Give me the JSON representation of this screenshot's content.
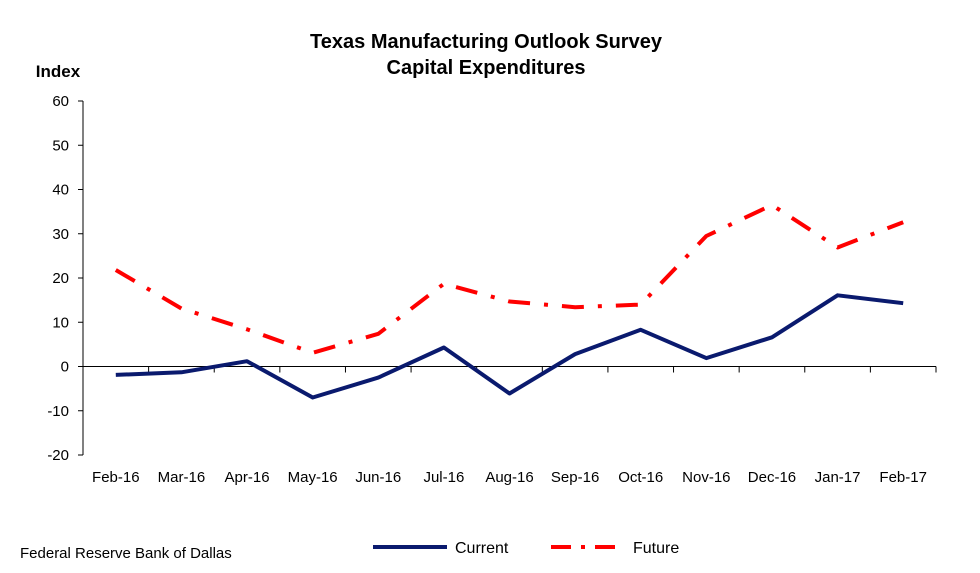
{
  "chart_data": {
    "type": "line",
    "title": "Texas Manufacturing Outlook Survey",
    "subtitle": "Capital Expenditures",
    "ylabel": "Index",
    "xlabel": "",
    "ylim": [
      -20,
      60
    ],
    "yticks": [
      -20,
      -10,
      0,
      10,
      20,
      30,
      40,
      50,
      60
    ],
    "categories": [
      "Feb-16",
      "Mar-16",
      "Apr-16",
      "May-16",
      "Jun-16",
      "Jul-16",
      "Aug-16",
      "Sep-16",
      "Oct-16",
      "Nov-16",
      "Dec-16",
      "Jan-17",
      "Feb-17"
    ],
    "series": [
      {
        "name": "Current",
        "color": "#0a1a6e",
        "style": "solid",
        "values": [
          -1.9,
          -1.3,
          1.2,
          -7.0,
          -2.5,
          4.3,
          -6.1,
          2.8,
          8.3,
          1.9,
          6.6,
          16.1,
          14.3
        ]
      },
      {
        "name": "Future",
        "color": "#ff0000",
        "style": "dash-dot",
        "values": [
          21.8,
          13.1,
          8.4,
          3.1,
          7.4,
          18.7,
          14.7,
          13.4,
          14.0,
          29.5,
          36.5,
          26.9,
          32.6
        ]
      }
    ],
    "grid": false,
    "legend_position": "bottom-center",
    "source": "Federal Reserve Bank of Dallas"
  }
}
